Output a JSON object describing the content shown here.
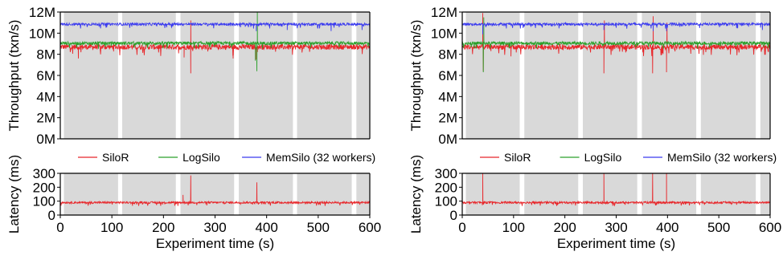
{
  "chart_data": [
    {
      "type": "line",
      "panel": "left-top",
      "ylabel": "Throughput (txn/s)",
      "xlim": [
        0,
        600
      ],
      "ylim": [
        0,
        12000000
      ],
      "y_ticks": [
        "0M",
        "2M",
        "4M",
        "6M",
        "8M",
        "10M",
        "12M"
      ],
      "shaded_x_intervals": [
        [
          7,
          112
        ],
        [
          120,
          224
        ],
        [
          233,
          337
        ],
        [
          346,
          451
        ],
        [
          459,
          565
        ],
        [
          574,
          600
        ]
      ],
      "legend_placement": "below",
      "series": [
        {
          "name": "SiloR",
          "color": "#e8262a",
          "mean": 8700000,
          "noise": 250000,
          "spikes": [
            [
              253,
              6200000
            ],
            [
              253,
              11200000
            ],
            [
              240,
              7700000
            ],
            [
              335,
              7600000
            ],
            [
              380,
              7500000
            ],
            [
              35,
              7600000
            ]
          ]
        },
        {
          "name": "LogSilo",
          "color": "#2aa02a",
          "mean": 9050000,
          "noise": 150000,
          "spikes": [
            [
              381,
              6400000
            ],
            [
              382,
              12000000
            ],
            [
              378,
              7400000
            ]
          ]
        },
        {
          "name": "MemSilo (32 workers)",
          "color": "#3b3bef",
          "mean": 10850000,
          "noise": 120000,
          "spikes": [
            [
              380,
              10200000
            ],
            [
              525,
              10200000
            ],
            [
              585,
              10300000
            ],
            [
              440,
              10300000
            ]
          ]
        }
      ]
    },
    {
      "type": "line",
      "panel": "left-bottom",
      "xlabel": "Experiment time (s)",
      "ylabel": "Latency (ms)",
      "xlim": [
        0,
        600
      ],
      "ylim": [
        0,
        300
      ],
      "x_ticks": [
        "0",
        "100",
        "200",
        "300",
        "400",
        "500",
        "600"
      ],
      "y_ticks": [
        "0",
        "100",
        "200",
        "300"
      ],
      "shaded_x_intervals": [
        [
          7,
          112
        ],
        [
          120,
          224
        ],
        [
          233,
          337
        ],
        [
          346,
          451
        ],
        [
          459,
          565
        ],
        [
          574,
          600
        ]
      ],
      "series": [
        {
          "name": "SiloR",
          "color": "#e8262a",
          "mean": 90,
          "noise": 7,
          "spikes": [
            [
              253,
              285
            ],
            [
              238,
              145
            ],
            [
              381,
              235
            ]
          ]
        }
      ]
    },
    {
      "type": "line",
      "panel": "right-top",
      "ylabel": "Throughput (txn/s)",
      "xlim": [
        0,
        600
      ],
      "ylim": [
        0,
        12000000
      ],
      "y_ticks": [
        "0M",
        "2M",
        "4M",
        "6M",
        "8M",
        "10M",
        "12M"
      ],
      "shaded_x_intervals": [
        [
          7,
          112
        ],
        [
          121,
          226
        ],
        [
          235,
          341
        ],
        [
          350,
          456
        ],
        [
          465,
          572
        ],
        [
          581,
          600
        ]
      ],
      "legend_placement": "below",
      "series": [
        {
          "name": "SiloR",
          "color": "#e8262a",
          "mean": 8700000,
          "noise": 250000,
          "spikes": [
            [
              40,
              11900000
            ],
            [
              41,
              6400000
            ],
            [
              276,
              6200000
            ],
            [
              277,
              11200000
            ],
            [
              371,
              6200000
            ],
            [
              372,
              11600000
            ],
            [
              398,
              6300000
            ],
            [
              399,
              11000000
            ],
            [
              95,
              7800000
            ]
          ]
        },
        {
          "name": "LogSilo",
          "color": "#2aa02a",
          "mean": 9050000,
          "noise": 150000,
          "spikes": [
            [
              41,
              6300000
            ],
            [
              42,
              11500000
            ]
          ]
        },
        {
          "name": "MemSilo (32 workers)",
          "color": "#3b3bef",
          "mean": 10850000,
          "noise": 120000,
          "spikes": [
            [
              40,
              9900000
            ],
            [
              276,
              10300000
            ],
            [
              372,
              10200000
            ],
            [
              398,
              10200000
            ],
            [
              585,
              10300000
            ]
          ]
        }
      ]
    },
    {
      "type": "line",
      "panel": "right-bottom",
      "xlabel": "Experiment time (s)",
      "ylabel": "Latency (ms)",
      "xlim": [
        0,
        600
      ],
      "ylim": [
        0,
        300
      ],
      "x_ticks": [
        "0",
        "100",
        "200",
        "300",
        "400",
        "500",
        "600"
      ],
      "y_ticks": [
        "0",
        "100",
        "200",
        "300"
      ],
      "shaded_x_intervals": [
        [
          7,
          112
        ],
        [
          121,
          226
        ],
        [
          235,
          341
        ],
        [
          350,
          456
        ],
        [
          465,
          572
        ],
        [
          581,
          600
        ]
      ],
      "series": [
        {
          "name": "SiloR",
          "color": "#e8262a",
          "mean": 90,
          "noise": 7,
          "spikes": [
            [
              40,
              300
            ],
            [
              276,
              300
            ],
            [
              371,
              300
            ],
            [
              398,
              300
            ]
          ]
        }
      ]
    }
  ]
}
